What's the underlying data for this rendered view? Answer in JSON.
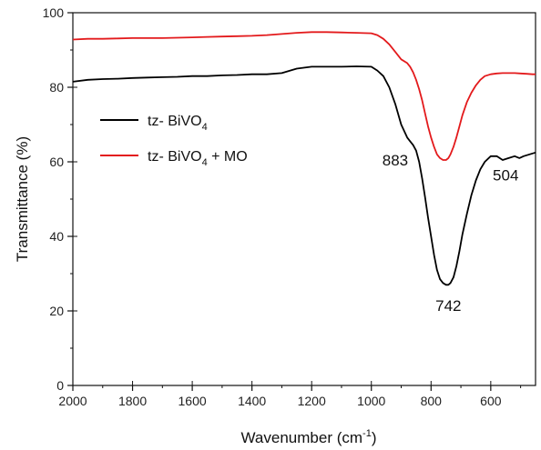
{
  "chart_data": {
    "type": "line",
    "xlabel": "Wavenumber (cm",
    "xlabel_sup": "-1",
    "xlabel_tail": ")",
    "ylabel": "Transmittance (%)",
    "xlim": [
      2000,
      450
    ],
    "ylim": [
      0,
      100
    ],
    "x_reversed": true,
    "xticks": [
      2000,
      1800,
      1600,
      1400,
      1200,
      1000,
      800,
      600
    ],
    "yticks": [
      0,
      20,
      40,
      60,
      80,
      100
    ],
    "legend_position": "left-middle",
    "series": [
      {
        "name": "tz- BiVO4",
        "legend_base": "tz- BiVO",
        "legend_sub": "4",
        "legend_tail": "",
        "color": "#000000",
        "x": [
          2000,
          1950,
          1900,
          1850,
          1800,
          1750,
          1700,
          1650,
          1600,
          1550,
          1500,
          1450,
          1400,
          1350,
          1300,
          1250,
          1200,
          1150,
          1100,
          1050,
          1000,
          980,
          960,
          940,
          920,
          900,
          880,
          870,
          860,
          850,
          840,
          830,
          820,
          810,
          800,
          790,
          780,
          770,
          760,
          750,
          742,
          735,
          725,
          715,
          705,
          695,
          680,
          665,
          650,
          635,
          620,
          600,
          580,
          560,
          540,
          520,
          504,
          490,
          470,
          450
        ],
        "y": [
          81.5,
          82,
          82.2,
          82.3,
          82.5,
          82.6,
          82.7,
          82.8,
          83,
          83,
          83.2,
          83.3,
          83.5,
          83.5,
          83.8,
          85,
          85.5,
          85.5,
          85.5,
          85.6,
          85.5,
          84.5,
          83,
          80,
          75.5,
          70,
          66.5,
          65.5,
          64.5,
          63,
          60,
          55.5,
          50.5,
          45,
          40,
          35,
          31,
          28.5,
          27.5,
          27,
          27,
          27.5,
          29,
          32,
          36,
          40.5,
          46,
          51,
          55,
          58,
          60,
          61.5,
          61.5,
          60.5,
          61,
          61.5,
          61,
          61.5,
          62,
          62.5
        ]
      },
      {
        "name": "tz- BiVO4 + MO",
        "legend_base": "tz- BiVO",
        "legend_sub": "4",
        "legend_tail": " + MO",
        "color": "#e31a1c",
        "x": [
          2000,
          1950,
          1900,
          1850,
          1800,
          1750,
          1700,
          1650,
          1600,
          1550,
          1500,
          1450,
          1400,
          1350,
          1300,
          1250,
          1200,
          1150,
          1100,
          1050,
          1000,
          980,
          960,
          940,
          920,
          900,
          880,
          870,
          860,
          850,
          840,
          830,
          820,
          810,
          800,
          790,
          780,
          770,
          760,
          750,
          742,
          735,
          725,
          715,
          705,
          695,
          680,
          665,
          650,
          635,
          620,
          600,
          580,
          560,
          540,
          520,
          500,
          480,
          460,
          450
        ],
        "y": [
          92.8,
          93,
          93,
          93.1,
          93.2,
          93.2,
          93.2,
          93.3,
          93.4,
          93.5,
          93.6,
          93.7,
          93.8,
          94,
          94.3,
          94.6,
          94.8,
          94.8,
          94.7,
          94.6,
          94.5,
          94,
          93,
          91.5,
          89.5,
          87.5,
          86.5,
          85.5,
          84,
          82,
          79.5,
          76.5,
          73,
          69.5,
          66.5,
          64,
          62,
          61,
          60.5,
          60.5,
          61,
          62,
          64,
          66.5,
          69.5,
          72.5,
          76,
          78.5,
          80.5,
          82,
          83,
          83.5,
          83.7,
          83.8,
          83.8,
          83.8,
          83.7,
          83.6,
          83.5,
          83.5
        ]
      }
    ],
    "annotations": [
      {
        "text": "883",
        "x": 920,
        "y": 59
      },
      {
        "text": "742",
        "x": 742,
        "y": 20
      },
      {
        "text": "504",
        "x": 550,
        "y": 55
      }
    ]
  }
}
